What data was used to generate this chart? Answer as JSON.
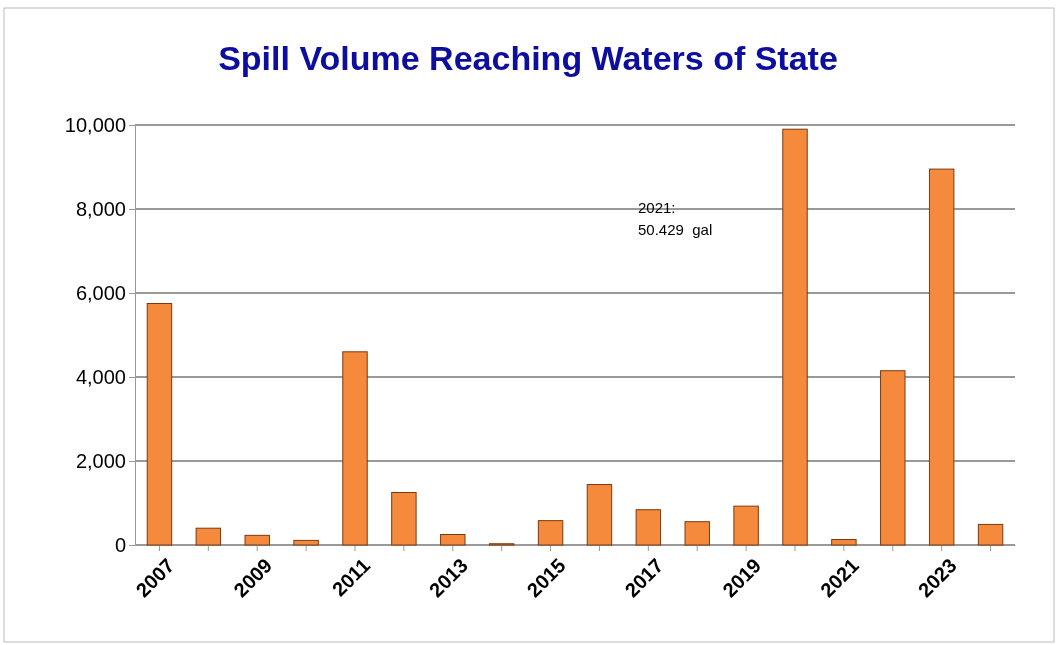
{
  "chart_data": {
    "type": "bar",
    "title": "Spill Volume Reaching Waters of State",
    "categories": [
      "2007",
      null,
      "2009",
      null,
      "2011",
      null,
      "2013",
      null,
      "2015",
      null,
      "2017",
      null,
      "2019",
      null,
      "2021",
      null,
      "2023",
      null
    ],
    "values": [
      5750,
      400,
      230,
      110,
      4600,
      1250,
      250,
      30,
      580,
      1440,
      840,
      555,
      925,
      9900,
      130,
      4150,
      8950,
      490
    ],
    "color": "#f58a3c",
    "ylim": [
      0,
      10000
    ],
    "yticks": [
      {
        "value": 0,
        "label": "0"
      },
      {
        "value": 2000,
        "label": "2,000"
      },
      {
        "value": 4000,
        "label": "4,000"
      },
      {
        "value": 6000,
        "label": "6,000"
      },
      {
        "value": 8000,
        "label": "8,000"
      },
      {
        "value": 10000,
        "label": "10,000"
      }
    ],
    "grid": "y",
    "annotations": [
      "2021:\n50.429  gal"
    ]
  }
}
